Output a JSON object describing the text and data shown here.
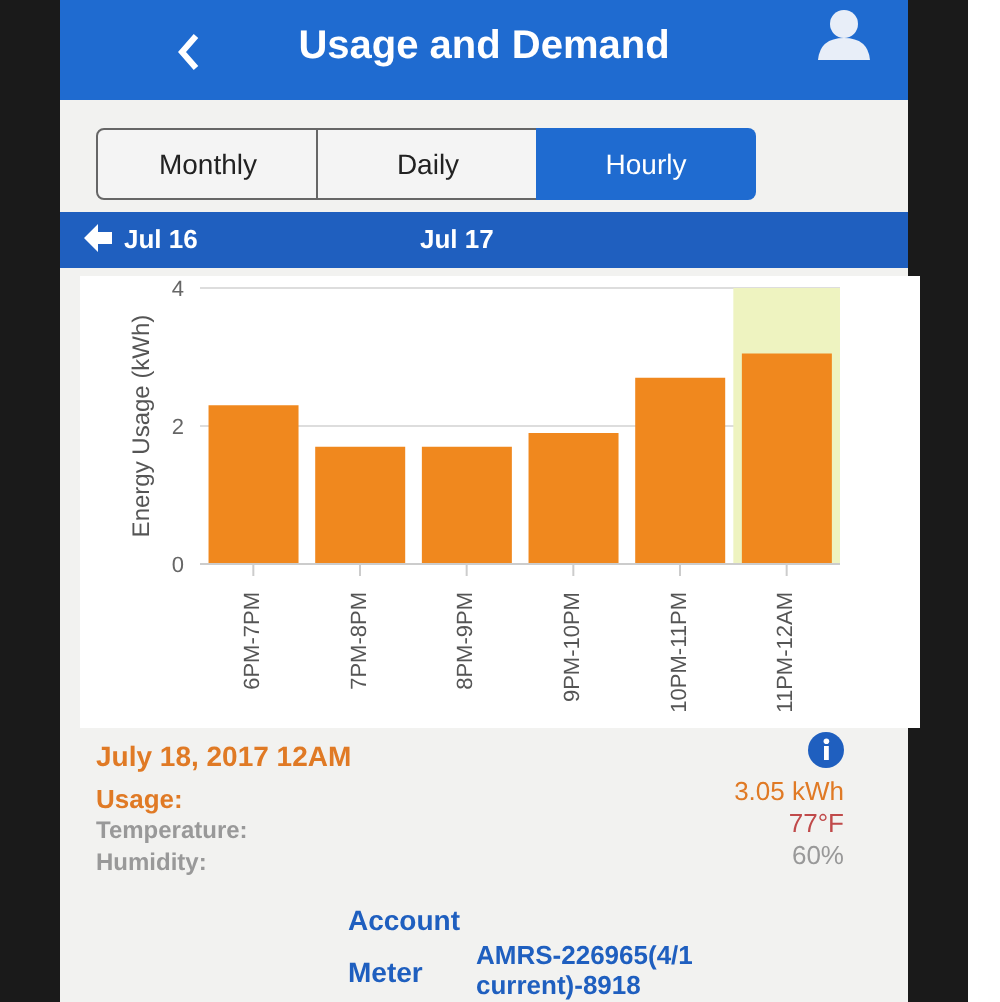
{
  "chart_data": {
    "type": "bar",
    "title": "Usage and Demand",
    "categories": [
      "6PM-7PM",
      "7PM-8PM",
      "8PM-9PM",
      "9PM-10PM",
      "10PM-11PM",
      "11PM-12AM"
    ],
    "values": [
      2.3,
      1.7,
      1.7,
      1.9,
      2.7,
      3.05
    ],
    "color": "#f0881e",
    "ylabel": "Energy Usage (kWh)",
    "ylim": [
      0,
      4
    ],
    "yticks": [
      0,
      2,
      4
    ],
    "grid": "y",
    "legend": false,
    "bands": [
      {
        "axis": "x",
        "from": "11PM-12AM",
        "to": "11PM-12AM",
        "color": "#eef3c0"
      }
    ],
    "annotations": [
      "Monthly",
      "Daily",
      "Hourly",
      "Jul 16",
      "Jul 17",
      "July 18, 2017 12AM",
      "Usage:",
      "3.05 kWh",
      "Temperature:",
      "77°F",
      "Humidity:",
      "60%",
      "Account",
      "Meter",
      "AMRS-226965(4/1 current)-8918"
    ]
  }
}
